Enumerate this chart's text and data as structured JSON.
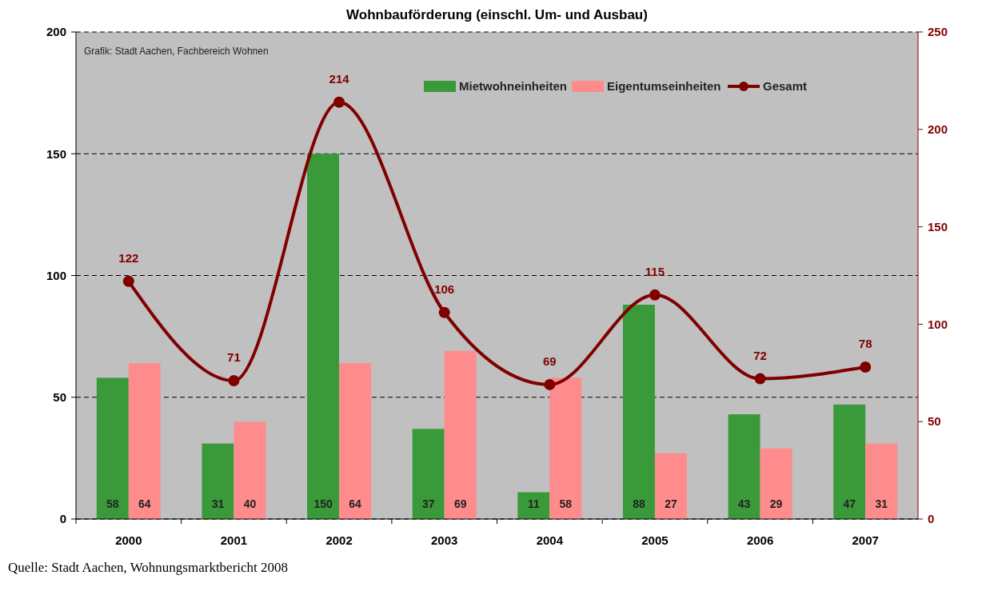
{
  "chart_data": {
    "type": "bar",
    "title": "Wohnbauförderung (einschl. Um- und Ausbau)",
    "categories": [
      "2000",
      "2001",
      "2002",
      "2003",
      "2004",
      "2005",
      "2006",
      "2007"
    ],
    "series": [
      {
        "name": "Mietwohneinheiten",
        "color": "#3a9a3a",
        "values": [
          58,
          31,
          150,
          37,
          11,
          88,
          43,
          47
        ]
      },
      {
        "name": "Eigentumseinheiten",
        "color": "#ff8c8c",
        "values": [
          64,
          40,
          64,
          69,
          58,
          27,
          29,
          31
        ]
      },
      {
        "name": "Gesamt",
        "type": "line",
        "axis": "y2",
        "color": "#800000",
        "marker": "circle",
        "values": [
          122,
          71,
          214,
          106,
          69,
          115,
          72,
          78
        ]
      }
    ],
    "ylim": [
      0,
      200
    ],
    "yticks": [
      0,
      50,
      100,
      150,
      200
    ],
    "y2lim": [
      0,
      250
    ],
    "y2ticks": [
      0,
      50,
      100,
      150,
      200,
      250
    ],
    "grid": "y",
    "legend": "top right",
    "data_labels": true,
    "annotations": [
      "Grafik: Stadt Aachen, Fachbereich Wohnen",
      "Quelle:   Stadt Aachen, Wohnungsmarktbericht 2008"
    ]
  }
}
